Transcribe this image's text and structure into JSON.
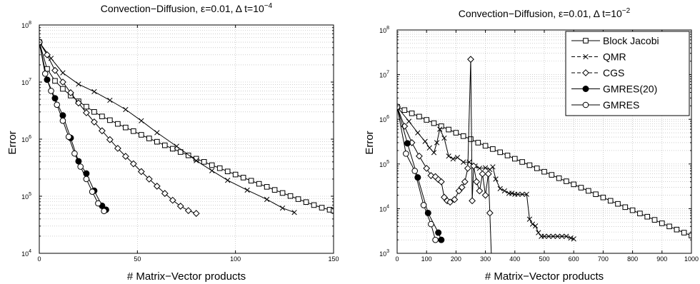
{
  "chart_data": [
    {
      "type": "line",
      "title_main": "Convection−Diffusion, ε=0.01, Δ t=10",
      "title_exp": "−4",
      "xlabel": "# Matrix−Vector products",
      "ylabel": "Error",
      "xlim": [
        0,
        150
      ],
      "ylim": [
        10000,
        100000000
      ],
      "yscale": "log",
      "grid": true,
      "xticks": [
        0,
        50,
        100,
        150
      ],
      "xtick_labels": [
        "0",
        "50",
        "100",
        "150"
      ],
      "yticks": [
        10000,
        100000,
        1000000,
        10000000,
        100000000
      ],
      "ytick_bases": [
        "10",
        "10",
        "10",
        "10",
        "10"
      ],
      "ytick_exps": [
        "4",
        "5",
        "6",
        "7",
        "8"
      ],
      "series": [
        {
          "name": "Block Jacobi",
          "marker": "square",
          "fill": "#ffffff",
          "x": [
            0,
            4,
            8,
            12,
            16,
            20,
            24,
            28,
            32,
            36,
            40,
            44,
            48,
            52,
            56,
            60,
            64,
            68,
            72,
            76,
            80,
            84,
            88,
            92,
            96,
            100,
            104,
            108,
            112,
            116,
            120,
            124,
            128,
            132,
            136,
            140,
            144,
            148,
            150
          ],
          "y": [
            50000000,
            17000000,
            10500000,
            7600000,
            5800000,
            4600000,
            3700000,
            3000000,
            2500000,
            2150000,
            1850000,
            1600000,
            1380000,
            1190000,
            1030000,
            900000,
            780000,
            680000,
            595000,
            520000,
            455000,
            400000,
            350000,
            310000,
            272000,
            240000,
            212000,
            187000,
            165000,
            146000,
            129000,
            114000,
            101000,
            89000,
            79000,
            70000,
            63000,
            58000,
            56000
          ]
        },
        {
          "name": "QMR",
          "marker": "x",
          "fill": "none",
          "x": [
            0,
            6,
            12,
            20,
            28,
            36,
            44,
            52,
            60,
            70,
            80,
            88,
            96,
            106,
            116,
            124,
            130
          ],
          "y": [
            50000000,
            26000000,
            14500000,
            9200000,
            6800000,
            4800000,
            3300000,
            2100000,
            1300000,
            750000,
            420000,
            280000,
            190000,
            128000,
            88000,
            62000,
            52000
          ]
        },
        {
          "name": "CGS",
          "marker": "diamond",
          "fill": "#ffffff",
          "x": [
            0,
            4,
            8,
            12,
            16,
            20,
            24,
            28,
            32,
            36,
            40,
            44,
            48,
            52,
            56,
            60,
            64,
            68,
            72,
            76,
            80
          ],
          "y": [
            50000000,
            30000000,
            16000000,
            10000000,
            6500000,
            4300000,
            2900000,
            2000000,
            1400000,
            980000,
            690000,
            500000,
            370000,
            270000,
            200000,
            150000,
            112000,
            85000,
            67000,
            56000,
            50000
          ]
        },
        {
          "name": "GMRES(20)",
          "marker": "dot",
          "fill": "#000000",
          "x": [
            0,
            4,
            8,
            12,
            16,
            20,
            24,
            28,
            32,
            34
          ],
          "y": [
            50000000,
            11000000,
            5200000,
            2600000,
            1050000,
            410000,
            250000,
            125000,
            68000,
            58000
          ]
        },
        {
          "name": "GMRES",
          "marker": "circle",
          "fill": "#ffffff",
          "x": [
            0,
            3,
            6,
            9,
            12,
            15,
            18,
            21,
            24,
            27,
            30,
            33
          ],
          "y": [
            50000000,
            14000000,
            7000000,
            4000000,
            2100000,
            1100000,
            560000,
            330000,
            200000,
            120000,
            75000,
            55000
          ]
        }
      ]
    },
    {
      "type": "line",
      "title_main": "Convection−Diffusion, ε=0.01, Δ t=10",
      "title_exp": "−2",
      "xlabel": "# Matrix−Vector products",
      "ylabel": "Error",
      "xlim": [
        0,
        1000
      ],
      "ylim": [
        1000,
        100000000
      ],
      "yscale": "log",
      "grid": true,
      "legend": "top-right",
      "xticks": [
        0,
        100,
        200,
        300,
        400,
        500,
        600,
        700,
        800,
        900,
        1000
      ],
      "xtick_labels": [
        "0",
        "100",
        "200",
        "300",
        "400",
        "500",
        "600",
        "700",
        "800",
        "900",
        "1000"
      ],
      "yticks": [
        1000,
        10000,
        100000,
        1000000,
        10000000,
        100000000
      ],
      "ytick_bases": [
        "10",
        "10",
        "10",
        "10",
        "10",
        "10"
      ],
      "ytick_exps": [
        "3",
        "4",
        "5",
        "6",
        "7",
        "8"
      ],
      "series": [
        {
          "name": "Block Jacobi",
          "marker": "square",
          "fill": "#ffffff",
          "x": [
            0,
            25,
            50,
            75,
            100,
            125,
            150,
            175,
            200,
            225,
            250,
            275,
            300,
            325,
            350,
            375,
            400,
            425,
            450,
            475,
            500,
            525,
            550,
            575,
            600,
            625,
            650,
            675,
            700,
            725,
            750,
            775,
            800,
            825,
            850,
            875,
            900,
            925,
            950,
            975,
            1000
          ],
          "y": [
            1900000,
            1610000,
            1360000,
            1150000,
            970000,
            820000,
            700000,
            590000,
            500000,
            420000,
            360000,
            300000,
            255000,
            216000,
            183000,
            155000,
            131000,
            111000,
            94000,
            80000,
            67000,
            57000,
            48000,
            41000,
            35000,
            29500,
            25000,
            21000,
            17800,
            15000,
            12800,
            10800,
            9200,
            7800,
            6600,
            5600,
            4700,
            4000,
            3400,
            2900,
            2500
          ]
        },
        {
          "name": "QMR",
          "marker": "x",
          "fill": "none",
          "x": [
            0,
            40,
            70,
            95,
            110,
            125,
            135,
            145,
            160,
            175,
            190,
            205,
            225,
            245,
            265,
            280,
            300,
            315,
            325,
            335,
            350,
            365,
            380,
            390,
            400,
            410,
            425,
            440,
            450,
            460,
            470,
            480,
            490,
            500,
            515,
            530,
            545,
            560,
            575,
            590,
            600
          ],
          "y": [
            1900000,
            900000,
            500000,
            320000,
            230000,
            180000,
            300000,
            600000,
            380000,
            150000,
            130000,
            140000,
            110000,
            110000,
            90000,
            80000,
            82000,
            75000,
            86000,
            46000,
            28000,
            25000,
            22000,
            22000,
            21000,
            21000,
            21000,
            21000,
            5800,
            4500,
            4100,
            2900,
            2400,
            2400,
            2400,
            2400,
            2400,
            2400,
            2400,
            2200,
            2100
          ]
        },
        {
          "name": "CGS",
          "marker": "diamond",
          "fill": "#ffffff",
          "x": [
            0,
            25,
            50,
            75,
            100,
            115,
            130,
            140,
            150,
            160,
            170,
            180,
            195,
            210,
            220,
            230,
            240,
            250,
            255,
            260,
            270,
            280,
            290,
            300,
            310,
            315,
            320
          ],
          "y": [
            1900000,
            700000,
            300000,
            150000,
            80000,
            55000,
            52000,
            45000,
            40000,
            18000,
            15000,
            14000,
            16000,
            25000,
            30000,
            40000,
            80000,
            22000000,
            15000,
            90000,
            40000,
            25000,
            60000,
            20000,
            60000,
            8000,
            1000
          ]
        },
        {
          "name": "GMRES(20)",
          "marker": "dot",
          "fill": "#000000",
          "x": [
            0,
            35,
            70,
            105,
            140,
            150
          ],
          "y": [
            1900000,
            290000,
            50000,
            8000,
            2900,
            2000
          ]
        },
        {
          "name": "GMRES",
          "marker": "circle",
          "fill": "#ffffff",
          "x": [
            0,
            30,
            60,
            90,
            115,
            130
          ],
          "y": [
            1900000,
            170000,
            70000,
            12000,
            4500,
            2000
          ]
        }
      ]
    }
  ]
}
